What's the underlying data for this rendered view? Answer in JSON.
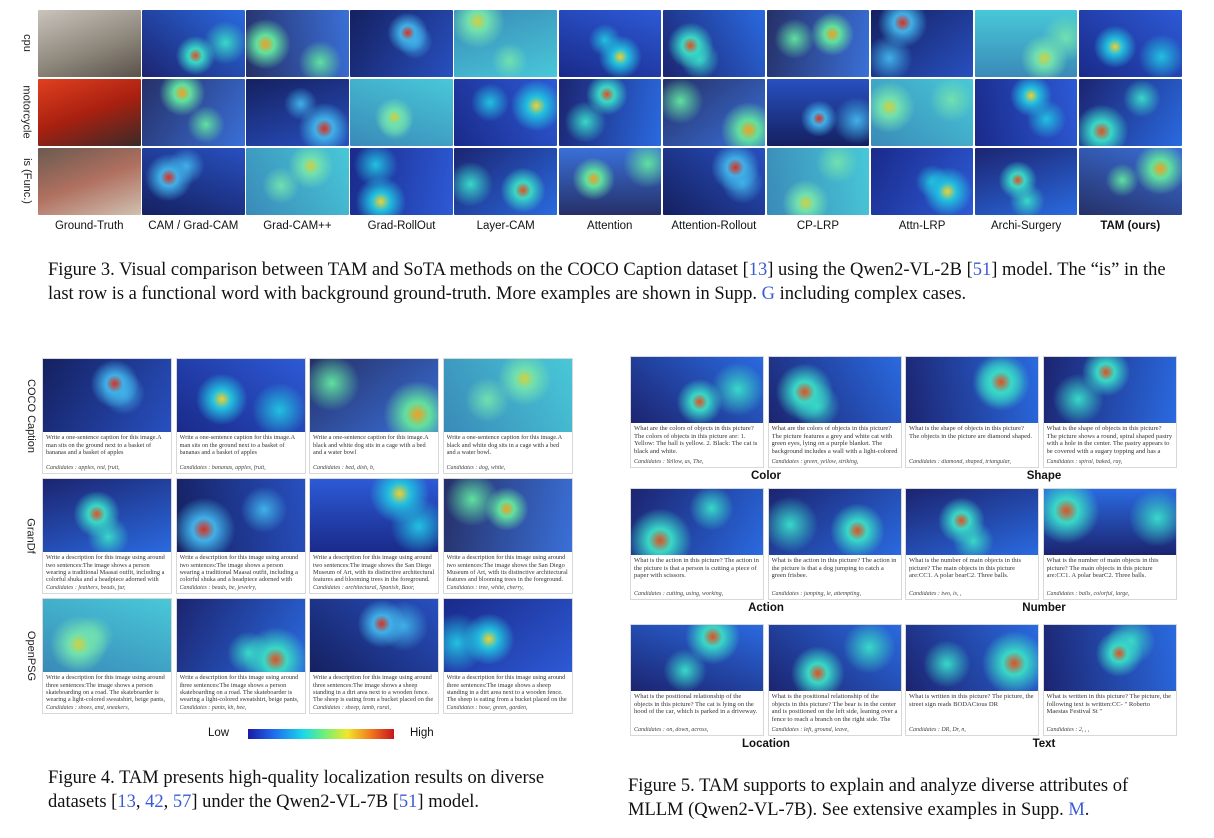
{
  "figure3": {
    "row_labels": [
      "cpu",
      "motorcycle",
      "is (Func.)"
    ],
    "column_labels": [
      "Ground-Truth",
      "CAM / Grad-CAM",
      "Grad-CAM++",
      "Grad-RollOut",
      "Layer-CAM",
      "Attention",
      "Attention-Rollout",
      "CP-LRP",
      "Attn-LRP",
      "Archi-Surgery",
      "TAM (ours)"
    ],
    "caption": {
      "part1": "Figure 3. Visual comparison between TAM and SoTA methods on the COCO Caption dataset [",
      "ref1": "13",
      "part2": "] using the Qwen2-VL-2B [",
      "ref2": "51",
      "part3": "] model. The “is” in the last row is a functional word with background ground-truth. More examples are shown in Supp. ",
      "ref3": "G",
      "part4": " including complex cases."
    }
  },
  "figure4": {
    "row_labels": [
      "COCO Caption",
      "GranDf",
      "OpenPSG"
    ],
    "panels": [
      {
        "text": "Write a one-sentence caption for this image.A man sits on the ground next to a basket of bananas and a basket of apples",
        "candidates": "Candidates : apples, red, fruit,"
      },
      {
        "text": "Write a one-sentence caption for this image.A man sits on the ground next to a basket of bananas and a basket of apples",
        "candidates": "Candidates : bananas, apples, fruit,"
      },
      {
        "text": "Write a one-sentence caption for this image.A black and white dog sits in a cage with a bed and a water bowl",
        "candidates": "Candidates : bed, dish, b,"
      },
      {
        "text": "Write a one-sentence caption for this image.A black and white dog sits in a cage with a bed and a water bowl.",
        "candidates": "Candidates : dog, white,"
      },
      {
        "text": "Write a description for this image using around two sentences:The image shows a person wearing a traditional Maasai outfit, including a colorful shuka and a headpiece adorned with feathers and beads.",
        "candidates": "Candidates : feathers, beads, fur,"
      },
      {
        "text": "Write a description for this image using around two sentences:The image shows a person wearing a traditional Maasai outfit, including a colorful shuka and a headpiece adorned with feathers and beads",
        "candidates": "Candidates : beads, be, jewelry,"
      },
      {
        "text": "Write a description for this image using around two sentences:The image shows the San Diego Museum of Art, with its distinctive architectural features and blooming trees in the foreground. The clear blue sky adds to the serene and picturesque setting.",
        "candidates": "Candidates : architectural, Spanish, Baor,"
      },
      {
        "text": "Write a description for this image using around two sentences:The image shows the San Diego Museum of Art, with its distinctive architectural features and blooming trees in the foreground. The clear blue sky adds to the serene and picturesque setting.",
        "candidates": "Candidates : tree, white, cherry,"
      },
      {
        "text": "Write a description for this image using around three sentences:The image shows a person skateboarding on a road. The skateboarder is wearing a light-colored sweatshirt, beige pants, and brown shoes. The background appears to be a blurred outdoor setting, suggesting motion.",
        "candidates": "Candidates : shoes, and, sneakers,"
      },
      {
        "text": "Write a description for this image using around three sentences:The image shows a person skateboarding on a road. The skateboarder is wearing a light-colored sweatshirt, beige pants, and brown shoes. The background appears to be a blurred outdoor setting, suggesting motion.",
        "candidates": "Candidates : pants, kh, bee,"
      },
      {
        "text": "Write a description for this image using around three sentences:The image shows a sheep standing in a dirt area next to a wooden fence. The sheep is eating from a bucket placed on the ground. There is a hose lying on the ground and a black bucket nearby. The scene appears to be set in a rural or farm-like environment.",
        "candidates": "Candidates : sheep, lamb, rural,"
      },
      {
        "text": "Write a description for this image using around three sentences:The image shows a sheep standing in a dirt area next to a wooden fence. The sheep is eating from a bucket placed on the ground. There is a hose lying on the ground and a black bucket nearby. The scene appears to be set in a rural or farm-like environment.",
        "candidates": "Candidates : hose, green, garden,"
      }
    ],
    "colorbar": {
      "low": "Low",
      "high": "High"
    },
    "caption": {
      "part1": "Figure 4.  TAM presents high-quality localization results on diverse datasets [",
      "ref1": "13",
      "sep1": ", ",
      "ref2": "42",
      "sep2": ", ",
      "ref3": "57",
      "part2": "] under the Qwen2-VL-7B [",
      "ref4": "51",
      "part3": "] model."
    }
  },
  "figure5": {
    "group_labels": [
      "Color",
      "Shape",
      "Action",
      "Number",
      "Location",
      "Text"
    ],
    "panels": [
      {
        "text": "What are the colors of objects in this picture? The colors of objects in this picture are: 1. Yellow: The ball is yellow. 2. Black: The cat is black and white.",
        "candidates": "Candidates : Yellow, as, The,"
      },
      {
        "text": "What are the colors of objects in this picture? The picture features a grey and white cat with green eyes, lying on a purple blanket. The background includes a wall with a light-colored surface and some framed pictures or decorations.",
        "candidates": "Candidates : green, yellow, striking,"
      },
      {
        "text": "What is the shape of objects in this picture? The objects in the picture are diamond shaped.",
        "candidates": "Candidates : diamond, shaped, triangular,"
      },
      {
        "text": "What is the shape of objects in this picture? The picture shows a round, spiral shaped pastry with a hole in the center. The pastry appears to be covered with a sugary topping and has a white icing drizzled on top.",
        "candidates": "Candidates : spiral, baked, ray,"
      },
      {
        "text": "What is the action in this picture? The action in the picture is that a person is cutting a piece of paper with scissors.",
        "candidates": "Candidates : cutting, using, working,"
      },
      {
        "text": "What is the action in this picture? The action in the picture is that a dog jumping to catch a green frisbee.",
        "candidates": "Candidates : jumping, le, attempting,"
      },
      {
        "text": "What is the number of main objects in this picture? The main objects in this picture are:CC1. A polar bearC2. Three balls.",
        "candidates": "Candidates : two, is, ,"
      },
      {
        "text": "What is the number of main objects in this picture? The main objects in this picture are:CC1. A polar bearC2. Three balls.",
        "candidates": "Candidates : balls, colorful, large,"
      },
      {
        "text": "What is the positional relationship of the objects in this picture? The cat is lying on the hood of the car, which is parked in a driveway.",
        "candidates": "Candidates : on, down, across,"
      },
      {
        "text": "What is the positional relationship of the objects in this picture? The bear is in the center and is positioned on the left side, leaning over a fence to reach a branch on the right side. The giraffe is reaching out to take food from the man's hand. The fence separates the man and the giraffe, and the tree is behind the man.",
        "candidates": "Candidates : left, ground, leave,"
      },
      {
        "text": "What is written in this picture? The picture, the street sign reads BODACious DR",
        "candidates": "Candidates : DR, Dr, n,"
      },
      {
        "text": "What is written in this picture? The picture, the following text is written:CC- \" Roberto Maestas Festival St \"",
        "candidates": "Candidates : 2, , ,"
      }
    ],
    "caption": {
      "part1": "Figure 5.  TAM supports to explain and analyze diverse attributes of MLLM (Qwen2-VL-7B). See extensive examples in Supp. ",
      "ref1": "M",
      "part2": "."
    }
  },
  "colors": {
    "link": "#3a5bd6",
    "heat_low": "#1a1aa8",
    "heat_high": "#c8141e"
  }
}
